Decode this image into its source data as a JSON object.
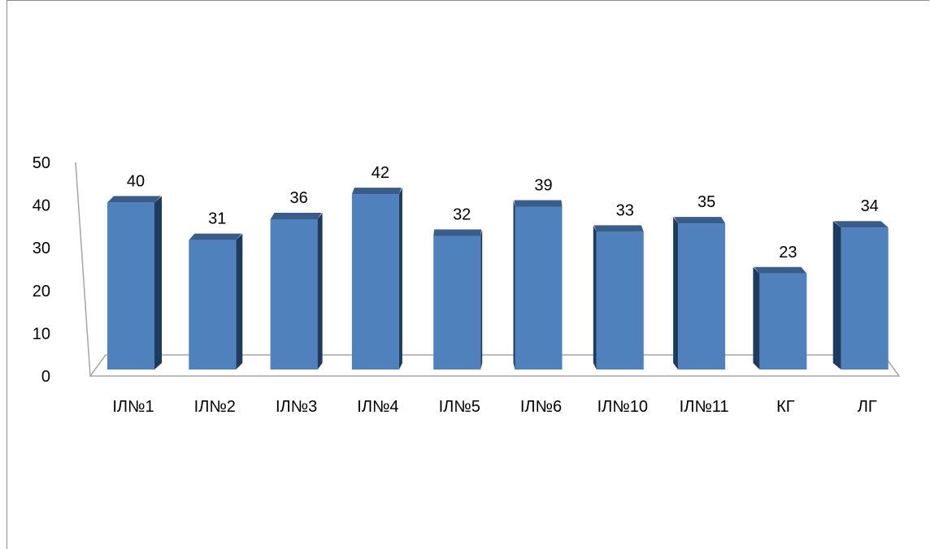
{
  "chart_data": {
    "type": "bar",
    "categories": [
      "ІЛ№1",
      "ІЛ№2",
      "ІЛ№3",
      "ІЛ№4",
      "ІЛ№5",
      "ІЛ№6",
      "ІЛ№10",
      "ІЛ№11",
      "КГ",
      "ЛГ"
    ],
    "values": [
      40,
      31,
      36,
      42,
      32,
      39,
      33,
      35,
      23,
      34
    ],
    "yticks": [
      "0",
      "10",
      "20",
      "30",
      "40",
      "50"
    ],
    "ylim": [
      0,
      50
    ],
    "style": "3d-column",
    "grid": false,
    "legend": "none",
    "colors": {
      "bar_front": "#4F81BD",
      "bar_top": "#385D8A",
      "bar_side": "#1F3A5F",
      "floor_line": "#A6A6A6"
    }
  }
}
